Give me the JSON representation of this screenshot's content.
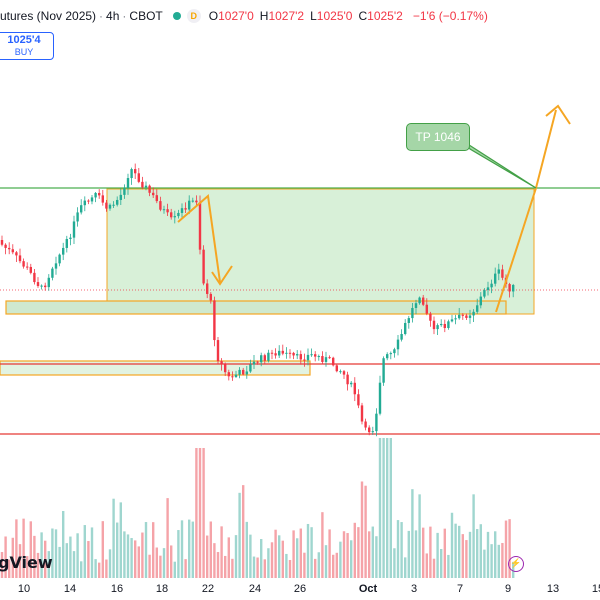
{
  "header": {
    "title": "utures (Nov 2025)",
    "interval": "4h",
    "exchange": "CBOT",
    "badge": "D",
    "ohlc": [
      {
        "label": "O",
        "value": "1027'0"
      },
      {
        "label": "H",
        "value": "1027'2"
      },
      {
        "label": "L",
        "value": "1025'0"
      },
      {
        "label": "C",
        "value": "1025'2"
      }
    ],
    "change": "−1'6 (−0.17%)"
  },
  "order_button": {
    "price": "1025'4",
    "action": "BUY"
  },
  "target_label": "TP 1046",
  "brand": "gView",
  "x_axis": [
    {
      "label": "10"
    },
    {
      "label": "14"
    },
    {
      "label": "16"
    },
    {
      "label": "18"
    },
    {
      "label": "22"
    },
    {
      "label": "24"
    },
    {
      "label": "26"
    },
    {
      "label": "Oct",
      "bold": true
    },
    {
      "label": "3"
    },
    {
      "label": "7"
    },
    {
      "label": "9"
    },
    {
      "label": "13"
    },
    {
      "label": "15"
    }
  ],
  "colors": {
    "up": "#22ab94",
    "down": "#f23645",
    "vol_up": "#9fd6cf",
    "vol_down": "#f5a3a8",
    "zone_fill": "#d8f0d8",
    "zone_border": "#f5a623",
    "resistance": "#4caf50",
    "support": "#e53935",
    "arrow": "#f5a623"
  }
}
